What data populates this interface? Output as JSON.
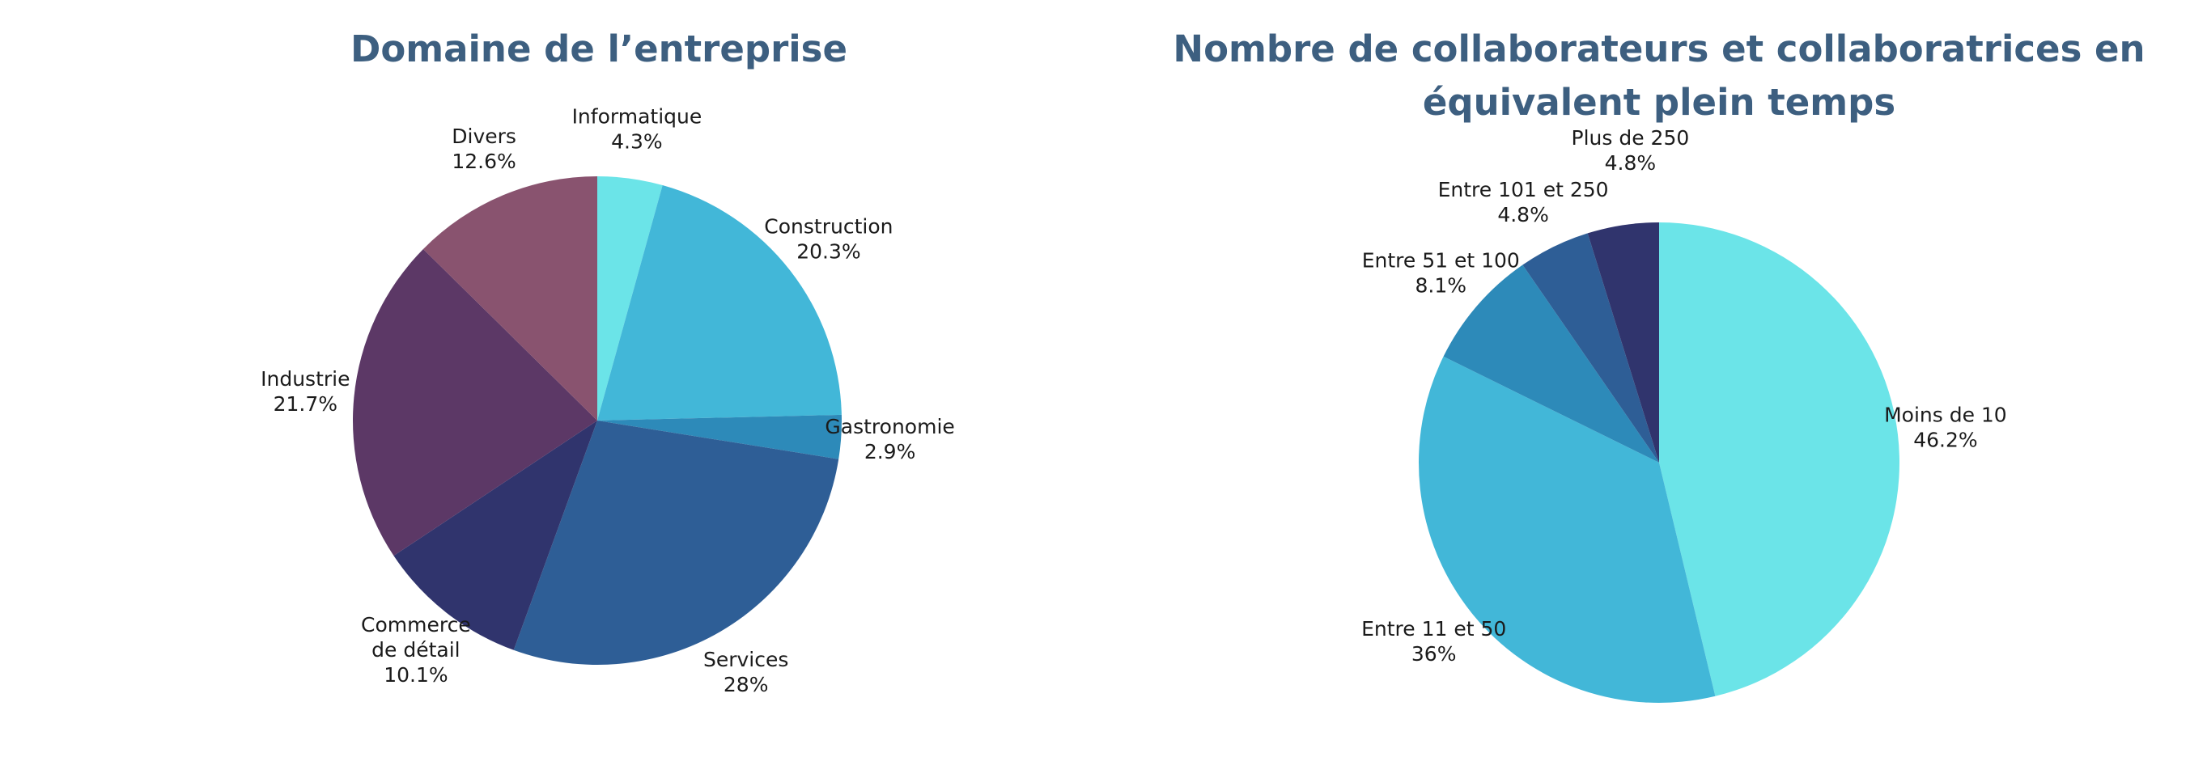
{
  "chart_data": [
    {
      "type": "pie",
      "title": "Domaine de l’entreprise",
      "start": "top",
      "direction": "clockwise",
      "slices": [
        {
          "label": [
            "Informatique"
          ],
          "pct_text": "4.3%",
          "value": 4.3,
          "color": "#6be4e8"
        },
        {
          "label": [
            "Construction"
          ],
          "pct_text": "20.3%",
          "value": 20.3,
          "color": "#42b7d8"
        },
        {
          "label": [
            "Gastronomie"
          ],
          "pct_text": "2.9%",
          "value": 2.9,
          "color": "#2d8ab9"
        },
        {
          "label": [
            "Services"
          ],
          "pct_text": "28%",
          "value": 28.0,
          "color": "#2e5e96"
        },
        {
          "label": [
            "Commerce",
            "de détail"
          ],
          "pct_text": "10.1%",
          "value": 10.1,
          "color": "#30346d"
        },
        {
          "label": [
            "Industrie"
          ],
          "pct_text": "21.7%",
          "value": 21.7,
          "color": "#5c3866"
        },
        {
          "label": [
            "Divers"
          ],
          "pct_text": "12.6%",
          "value": 12.6,
          "color": "#89536f"
        }
      ]
    },
    {
      "type": "pie",
      "title": "Nombre de collaborateurs et collaboratrices en équivalent plein temps",
      "start": "top",
      "direction": "clockwise",
      "slices": [
        {
          "label": [
            "Moins de 10"
          ],
          "pct_text": "46.2%",
          "value": 46.2,
          "color": "#6be4e8"
        },
        {
          "label": [
            "Entre 11 et 50"
          ],
          "pct_text": "36%",
          "value": 36.0,
          "color": "#42b7d8"
        },
        {
          "label": [
            "Entre 51 et 100"
          ],
          "pct_text": "8.1%",
          "value": 8.1,
          "color": "#2d8ab9"
        },
        {
          "label": [
            "Entre 101 et 250"
          ],
          "pct_text": "4.8%",
          "value": 4.8,
          "color": "#2e5e96"
        },
        {
          "label": [
            "Plus de 250"
          ],
          "pct_text": "4.8%",
          "value": 4.8,
          "color": "#30346d"
        }
      ]
    }
  ]
}
